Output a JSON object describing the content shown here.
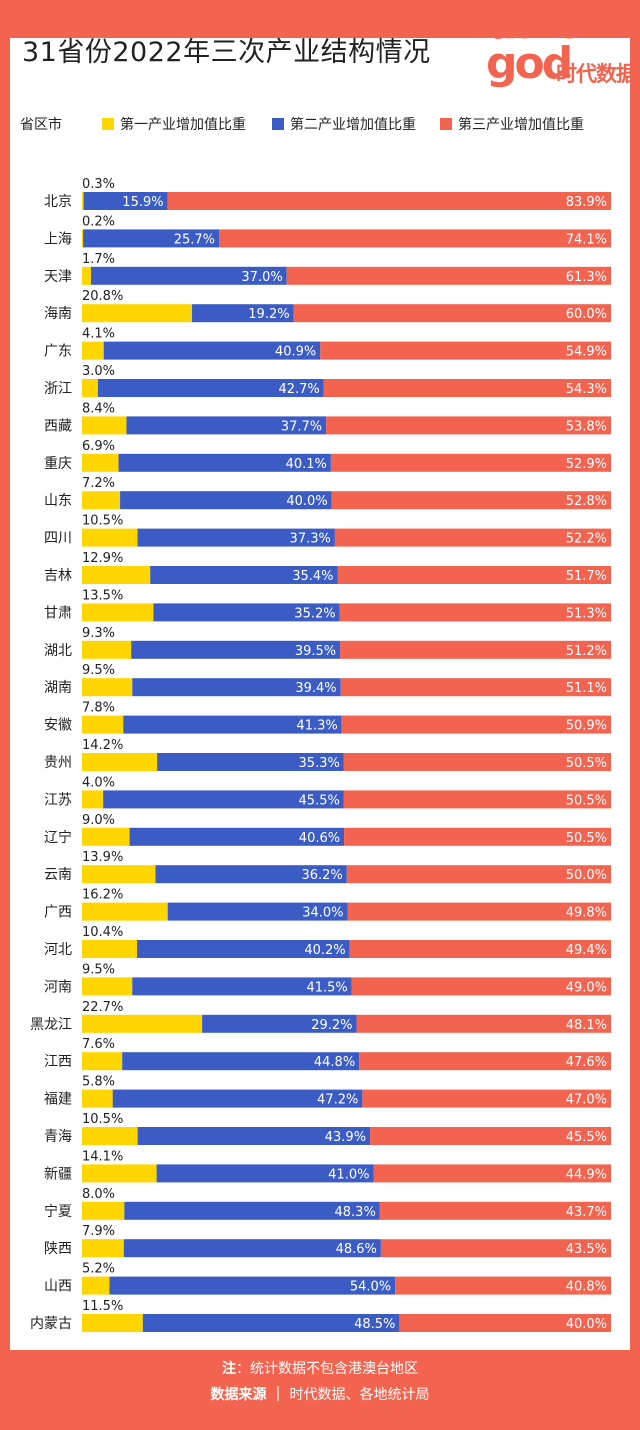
{
  "title": "31省份2022年三次产业结构情况",
  "logo": {
    "line1": "data",
    "line2": "god",
    "cn": "时代数据"
  },
  "legend": {
    "header": "省区市",
    "items": [
      {
        "label": "第一产业增加值比重",
        "color": "#ffd600"
      },
      {
        "label": "第二产业增加值比重",
        "color": "#3b5cc4"
      },
      {
        "label": "第三产业增加值比重",
        "color": "#f26450"
      }
    ]
  },
  "chart_data": {
    "type": "bar",
    "stacked": true,
    "orientation": "horizontal",
    "categories": [
      "北京",
      "上海",
      "天津",
      "海南",
      "广东",
      "浙江",
      "西藏",
      "重庆",
      "山东",
      "四川",
      "吉林",
      "甘肃",
      "湖北",
      "湖南",
      "安徽",
      "贵州",
      "江苏",
      "辽宁",
      "云南",
      "广西",
      "河北",
      "河南",
      "黑龙江",
      "江西",
      "福建",
      "青海",
      "新疆",
      "宁夏",
      "陕西",
      "山西",
      "内蒙古"
    ],
    "series": [
      {
        "name": "第一产业增加值比重",
        "labels": [
          "0.3%",
          "0.2%",
          "1.7%",
          "20.8%",
          "4.1%",
          "3.0%",
          "8.4%",
          "6.9%",
          "7.2%",
          "10.5%",
          "12.9%",
          "13.5%",
          "9.3%",
          "9.5%",
          "7.8%",
          "14.2%",
          "4.0%",
          "9.0%",
          "13.9%",
          "16.2%",
          "10.4%",
          "9.5%",
          "22.7%",
          "7.6%",
          "5.8%",
          "10.5%",
          "14.1%",
          "8.0%",
          "7.9%",
          "5.2%",
          "11.5%"
        ],
        "values": [
          0.3,
          0.2,
          1.7,
          20.8,
          4.1,
          3.0,
          8.4,
          6.9,
          7.2,
          10.5,
          12.9,
          13.5,
          9.3,
          9.5,
          7.8,
          14.2,
          4.0,
          9.0,
          13.9,
          16.2,
          10.4,
          9.5,
          22.7,
          7.6,
          5.8,
          10.5,
          14.1,
          8.0,
          7.9,
          5.2,
          11.5
        ]
      },
      {
        "name": "第二产业增加值比重",
        "labels": [
          "15.9%",
          "25.7%",
          "37.0%",
          "19.2%",
          "40.9%",
          "42.7%",
          "37.7%",
          "40.1%",
          "40.0%",
          "37.3%",
          "35.4%",
          "35.2%",
          "39.5%",
          "39.4%",
          "41.3%",
          "35.3%",
          "45.5%",
          "40.6%",
          "36.2%",
          "34.0%",
          "40.2%",
          "41.5%",
          "29.2%",
          "44.8%",
          "47.2%",
          "43.9%",
          "41.0%",
          "48.3%",
          "48.6%",
          "54.0%",
          "48.5%"
        ],
        "values": [
          15.9,
          25.7,
          37.0,
          19.2,
          40.9,
          42.7,
          37.7,
          40.1,
          40.0,
          37.3,
          35.4,
          35.2,
          39.5,
          39.4,
          41.3,
          35.3,
          45.5,
          40.6,
          36.2,
          34.0,
          40.2,
          41.5,
          29.2,
          44.8,
          47.2,
          43.9,
          41.0,
          48.3,
          48.6,
          54.0,
          48.5
        ]
      },
      {
        "name": "第三产业增加值比重",
        "labels": [
          "83.9%",
          "74.1%",
          "61.3%",
          "60.0%",
          "54.9%",
          "54.3%",
          "53.8%",
          "52.9%",
          "52.8%",
          "52.2%",
          "51.7%",
          "51.3%",
          "51.2%",
          "51.1%",
          "50.9%",
          "50.5%",
          "50.5%",
          "50.5%",
          "50.0%",
          "49.8%",
          "49.4%",
          "49.0%",
          "48.1%",
          "47.6%",
          "47.0%",
          "45.5%",
          "44.9%",
          "43.7%",
          "43.5%",
          "40.8%",
          "40.0%"
        ],
        "values": [
          83.9,
          74.1,
          61.3,
          60.0,
          54.9,
          54.3,
          53.8,
          52.9,
          52.8,
          52.2,
          51.7,
          51.3,
          51.2,
          51.1,
          50.9,
          50.5,
          50.5,
          50.5,
          50.0,
          49.8,
          49.4,
          49.0,
          48.1,
          47.6,
          47.0,
          45.5,
          44.9,
          43.7,
          43.5,
          40.8,
          40.0
        ]
      }
    ],
    "xlim": [
      0,
      100
    ]
  },
  "footer": {
    "note_label": "注",
    "note_text": "：统计数据不包含港澳台地区",
    "source_label": "数据来源",
    "source_sep": "｜",
    "source_text": "时代数据、各地统计局"
  }
}
